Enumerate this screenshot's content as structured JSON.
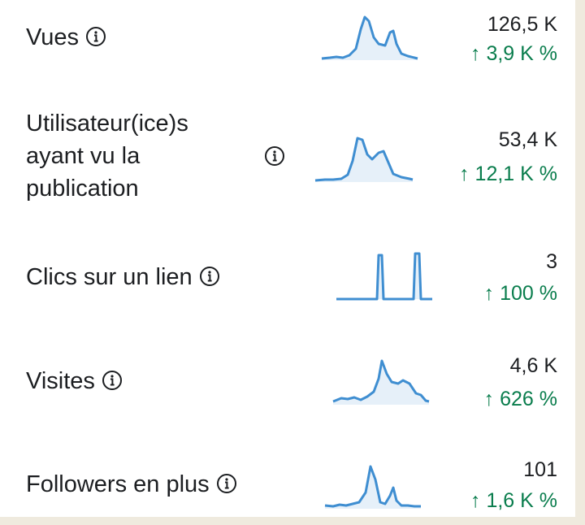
{
  "metrics": [
    {
      "label": "Vues",
      "value": "126,5 K",
      "delta": "↑ 3,9 K %",
      "trend": "up",
      "info_icon": "info-icon"
    },
    {
      "label_lines": [
        "Utilisateur(ice)s",
        "ayant vu la",
        "publication"
      ],
      "value": "53,4 K",
      "delta": "↑ 12,1 K %",
      "trend": "up",
      "info_icon": "info-icon"
    },
    {
      "label": "Clics sur un lien",
      "value": "3",
      "delta": "↑ 100 %",
      "trend": "up",
      "info_icon": "info-icon"
    },
    {
      "label": "Visites",
      "value": "4,6 K",
      "delta": "↑ 626 %",
      "trend": "up",
      "info_icon": "info-icon"
    },
    {
      "label": "Followers en plus",
      "value": "101",
      "delta": "↑ 1,6 K %",
      "trend": "up",
      "info_icon": "info-icon"
    }
  ],
  "colors": {
    "sparkline_line": "#3f8ed1",
    "sparkline_fill": "#e6f0f9",
    "positive_delta": "#0a7d4d",
    "text": "#1c1e21",
    "background": "#efeade"
  }
}
